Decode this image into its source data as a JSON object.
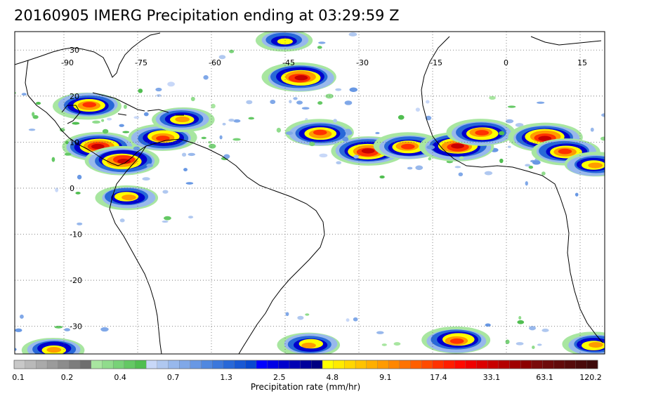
{
  "title": "20160905 IMERG Precipitation ending at 03:29:59 Z",
  "map": {
    "lon_range": [
      -100,
      20
    ],
    "lat_range": [
      -36,
      34
    ],
    "lon_ticks": [
      "-90",
      "-75",
      "-60",
      "-45",
      "-30",
      "-15",
      "0",
      "15"
    ],
    "lat_ticks": [
      "30",
      "20",
      "10",
      "0",
      "-10",
      "-20",
      "-30"
    ],
    "grid": "dotted",
    "coastline_color": "#000000"
  },
  "colorbar": {
    "title": "Precipitation rate (mm/hr)",
    "labels": [
      "0.1",
      "0.2",
      "0.4",
      "0.7",
      "1.3",
      "2.5",
      "4.8",
      "9.1",
      "17.4",
      "33.1",
      "63.1",
      "120.2"
    ],
    "colors": [
      "#c8c8c8",
      "#b9b9b9",
      "#aaaaaa",
      "#9b9b9b",
      "#8c8c8c",
      "#7d7d7d",
      "#6e6e6e",
      "#a8e6a0",
      "#90dc8c",
      "#78d278",
      "#64c864",
      "#50be50",
      "#c8d8f8",
      "#b0c8f0",
      "#98b8ec",
      "#80a8e8",
      "#6898e4",
      "#5088e0",
      "#3c78dc",
      "#2868d8",
      "#1858d4",
      "#0848d0",
      "#0000ff",
      "#0000e6",
      "#0000cd",
      "#0000b4",
      "#00009b",
      "#000082",
      "#ffff00",
      "#ffeb00",
      "#ffd700",
      "#ffc300",
      "#ffaf00",
      "#ff9b00",
      "#ff8700",
      "#ff7300",
      "#ff5f00",
      "#ff4b00",
      "#ff3200",
      "#ff1e00",
      "#ff0a00",
      "#f00000",
      "#dc0000",
      "#c80000",
      "#b40000",
      "#a00000",
      "#8c0000",
      "#7a0a0a",
      "#6e0a0a",
      "#620a0a",
      "#560a0a",
      "#4a0a0a",
      "#3e0a0a"
    ]
  },
  "precip_systems": [
    {
      "lon": -85,
      "lat": 18,
      "max": 17.4
    },
    {
      "lon": -83,
      "lat": 9,
      "max": 33.1
    },
    {
      "lon": -78,
      "lat": 6,
      "max": 33.1
    },
    {
      "lon": -70,
      "lat": 11,
      "max": 17.4
    },
    {
      "lon": -66,
      "lat": 15,
      "max": 9.1
    },
    {
      "lon": -42,
      "lat": 24,
      "max": 33.1
    },
    {
      "lon": -45,
      "lat": 32,
      "max": 4.8
    },
    {
      "lon": -38,
      "lat": 12,
      "max": 17.4
    },
    {
      "lon": -28,
      "lat": 8,
      "max": 33.1
    },
    {
      "lon": -20,
      "lat": 9,
      "max": 17.4
    },
    {
      "lon": -10,
      "lat": 9,
      "max": 33.1
    },
    {
      "lon": -5,
      "lat": 12,
      "max": 17.4
    },
    {
      "lon": 8,
      "lat": 11,
      "max": 33.1
    },
    {
      "lon": 12,
      "lat": 8,
      "max": 17.4
    },
    {
      "lon": 18,
      "lat": 5,
      "max": 9.1
    },
    {
      "lon": -40,
      "lat": -34,
      "max": 9.1
    },
    {
      "lon": -10,
      "lat": -33,
      "max": 17.4
    },
    {
      "lon": 18,
      "lat": -34,
      "max": 9.1
    },
    {
      "lon": -92,
      "lat": -35,
      "max": 9.1
    },
    {
      "lon": -77,
      "lat": -2,
      "max": 9.1
    }
  ]
}
